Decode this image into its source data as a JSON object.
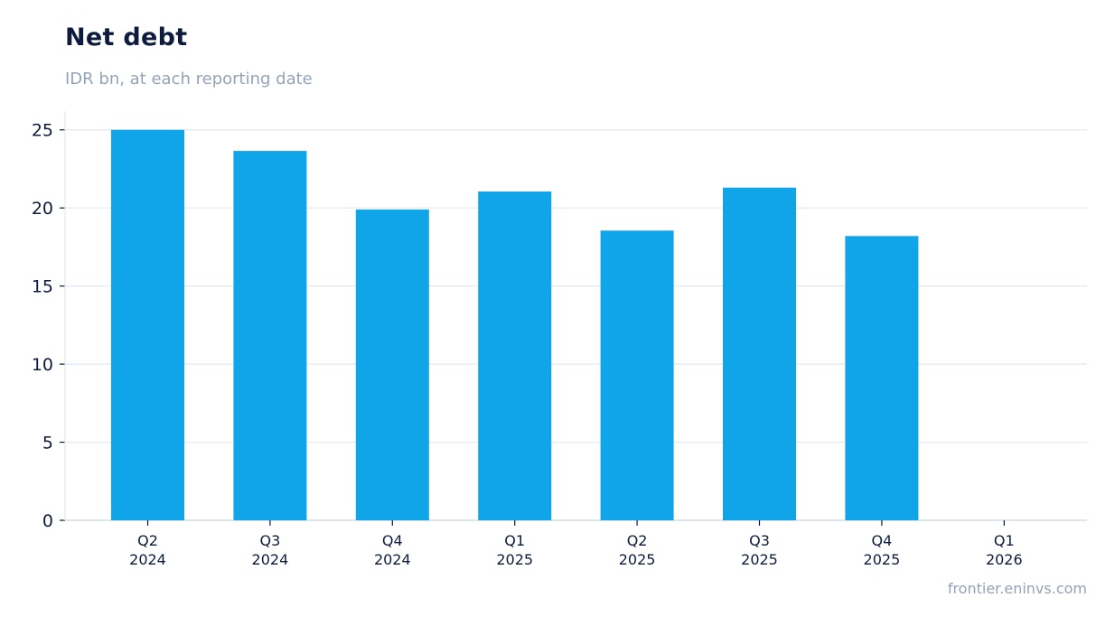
{
  "header": {
    "title": "Net debt",
    "subtitle": "IDR bn, at each reporting date"
  },
  "footer": {
    "source": "frontier.eninvs.com"
  },
  "colors": {
    "bar": "#10a5e8",
    "grid": "#e2e8f0",
    "axis": "#cbd5e1",
    "text": "#0d1b3e",
    "muted": "#94a3b8"
  },
  "chart_data": {
    "type": "bar",
    "title": "Net debt",
    "subtitle": "IDR bn, at each reporting date",
    "categories": [
      [
        "Q2",
        "2024"
      ],
      [
        "Q3",
        "2024"
      ],
      [
        "Q4",
        "2024"
      ],
      [
        "Q1",
        "2025"
      ],
      [
        "Q2",
        "2025"
      ],
      [
        "Q3",
        "2025"
      ],
      [
        "Q4",
        "2025"
      ],
      [
        "Q1",
        "2026"
      ]
    ],
    "values": [
      25.0,
      23.65,
      19.9,
      21.05,
      18.55,
      21.3,
      18.2,
      null
    ],
    "ylim": [
      0,
      26.2
    ],
    "yticks": [
      0,
      5,
      10,
      15,
      20,
      25
    ],
    "grid": true,
    "legend": "none"
  }
}
